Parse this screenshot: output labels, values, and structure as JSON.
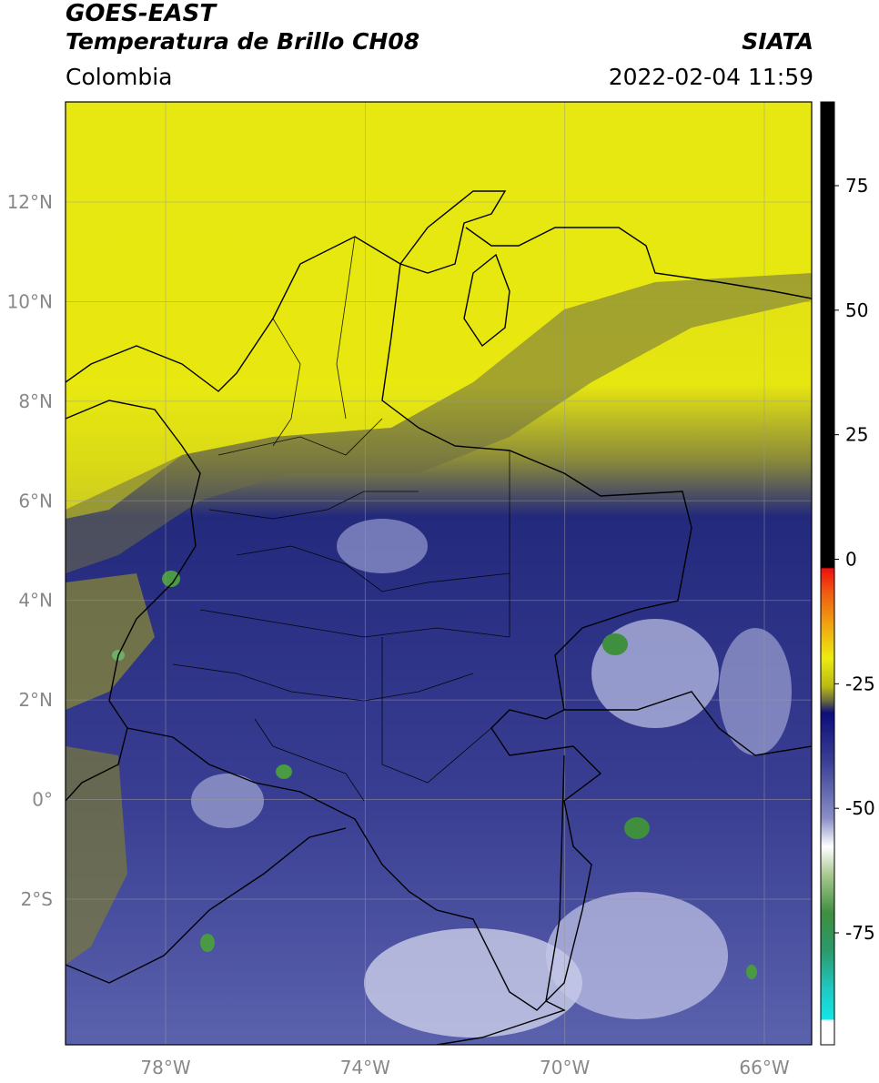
{
  "header": {
    "satellite": "GOES-EAST",
    "product": "Temperatura de Brillo CH08",
    "region": "Colombia",
    "source": "SIATA",
    "timestamp": "2022-02-04 11:59"
  },
  "map": {
    "lon_range": [
      -80,
      -65
    ],
    "lat_range": [
      -5,
      14
    ],
    "lat_ticks": [
      {
        "value": 12,
        "label": "12°N"
      },
      {
        "value": 10,
        "label": "10°N"
      },
      {
        "value": 8,
        "label": "8°N"
      },
      {
        "value": 6,
        "label": "6°N"
      },
      {
        "value": 4,
        "label": "4°N"
      },
      {
        "value": 2,
        "label": "2°N"
      },
      {
        "value": 0,
        "label": "0°"
      },
      {
        "value": -2,
        "label": "2°S"
      }
    ],
    "lon_ticks": [
      {
        "value": -78,
        "label": "78°W"
      },
      {
        "value": -74,
        "label": "74°W"
      },
      {
        "value": -70,
        "label": "70°W"
      },
      {
        "value": -66,
        "label": "66°W"
      }
    ],
    "colors": {
      "warm_dry": "#e8e810",
      "mid": "#2a2f8a",
      "cold": "#5f66b0",
      "very_cold": "#cfd3ea",
      "coldest": "#3f8f3f",
      "border": "#000000",
      "grid": "#9a9a9a"
    }
  },
  "colorbar": {
    "ticks": [
      {
        "value": 75,
        "label": "75"
      },
      {
        "value": 50,
        "label": "50"
      },
      {
        "value": 25,
        "label": "25"
      },
      {
        "value": 0,
        "label": "0"
      },
      {
        "value": -25,
        "label": "-25"
      },
      {
        "value": -50,
        "label": "-50"
      },
      {
        "value": -75,
        "label": "-75"
      }
    ],
    "range": [
      -95,
      90
    ]
  }
}
